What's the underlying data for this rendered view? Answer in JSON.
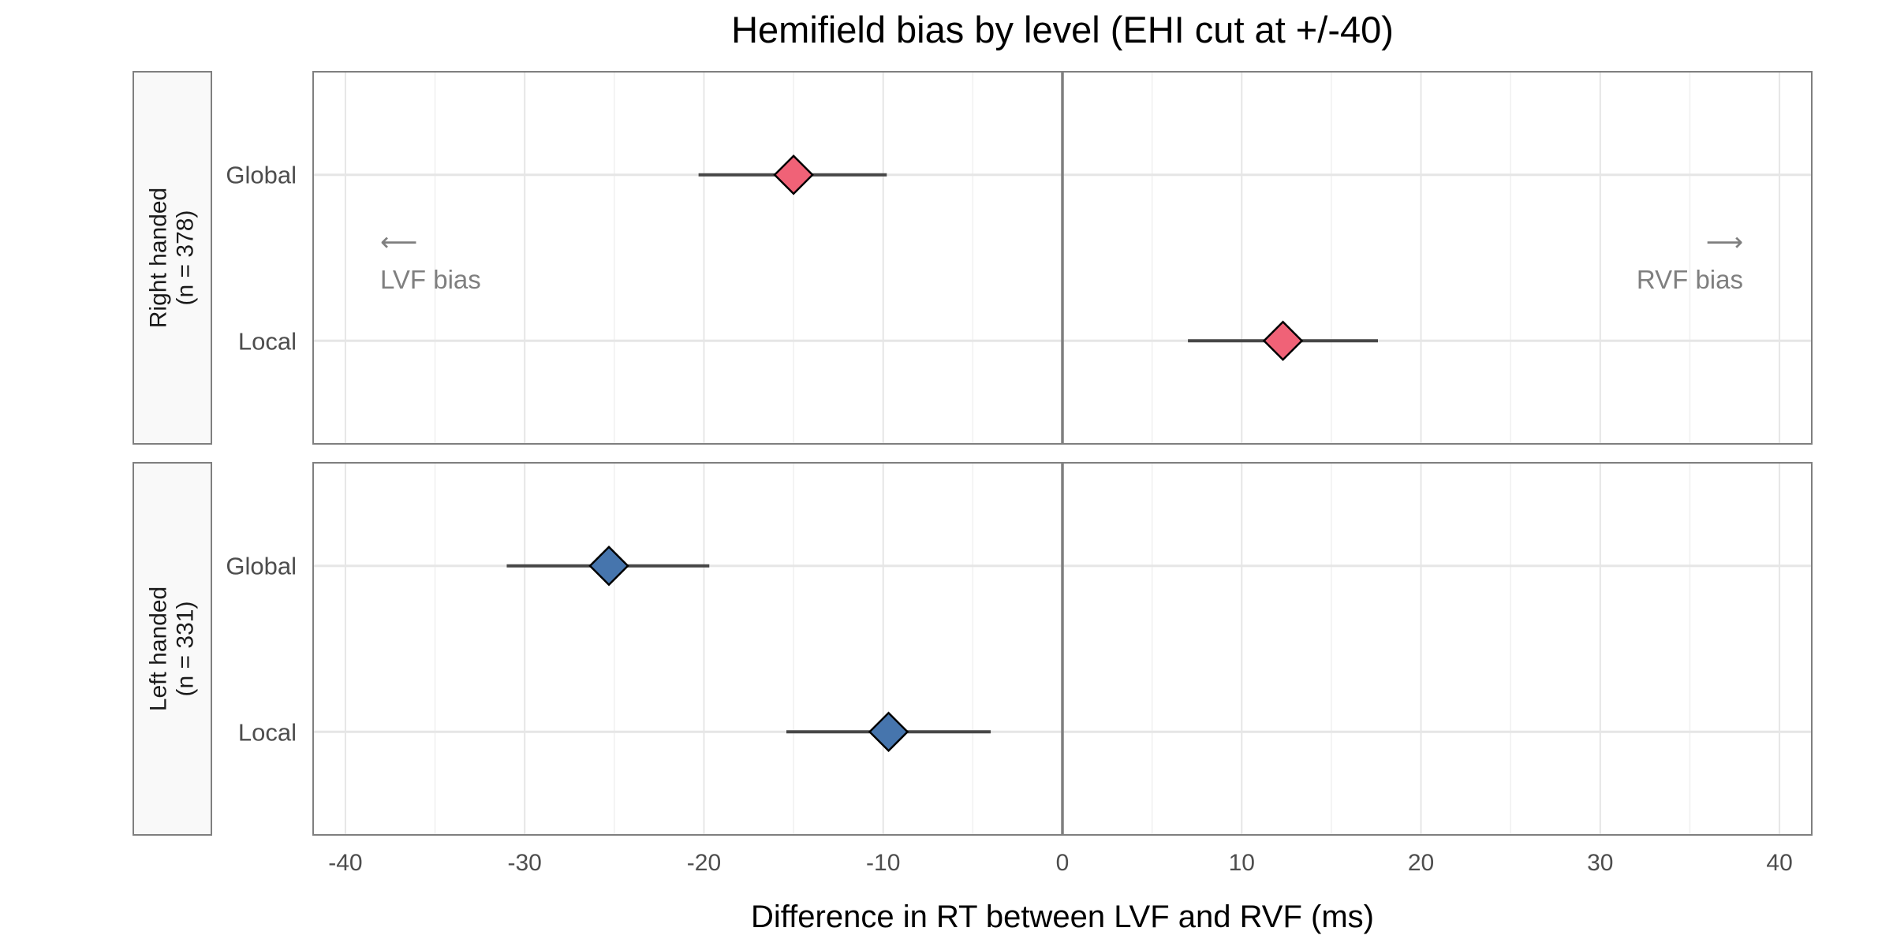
{
  "chart_data": {
    "type": "scatter",
    "title": "Hemifield bias by level (EHI cut at +/-40)",
    "xlabel": "Difference in RT between LVF and RVF (ms)",
    "ylabel": "",
    "xlim": [
      -41.8,
      41.8
    ],
    "x_ticks": [
      -40,
      -30,
      -20,
      -10,
      0,
      10,
      20,
      30,
      40
    ],
    "x_tick_labels": [
      "-40",
      "-30",
      "-20",
      "-10",
      "0",
      "10",
      "20",
      "30",
      "40"
    ],
    "reference_line_x": 0,
    "grid": true,
    "legend": "none",
    "categories": [
      "Global",
      "Local"
    ],
    "panels": [
      {
        "label_line1": "Right handed",
        "label_line2": "(n = 378)",
        "color": "#f06277",
        "points": [
          {
            "category": "Global",
            "x": -15.0,
            "ci_low": -20.3,
            "ci_high": -9.8
          },
          {
            "category": "Local",
            "x": 12.3,
            "ci_low": 7.0,
            "ci_high": 17.6
          }
        ],
        "annotations": {
          "left_arrow": "⟵",
          "left_text": "LVF bias",
          "right_arrow": "⟶",
          "right_text": "RVF bias"
        }
      },
      {
        "label_line1": "Left handed",
        "label_line2": "(n = 331)",
        "color": "#4675ad",
        "points": [
          {
            "category": "Global",
            "x": -25.3,
            "ci_low": -31.0,
            "ci_high": -19.7
          },
          {
            "category": "Local",
            "x": -9.7,
            "ci_low": -15.4,
            "ci_high": -4.0
          }
        ],
        "annotations": null
      }
    ]
  }
}
